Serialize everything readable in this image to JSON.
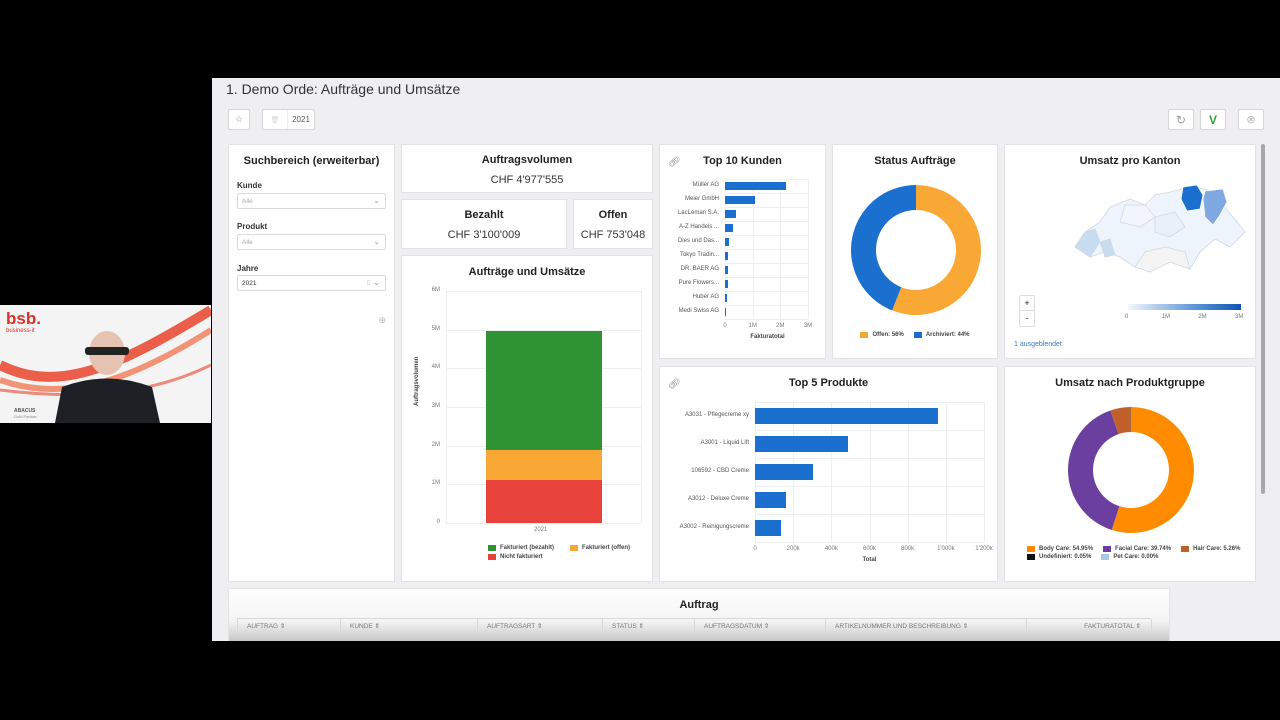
{
  "page": {
    "title": "1. Demo Orde: Aufträge und Umsätze"
  },
  "toolbar": {
    "favorite_icon": "☆",
    "year_chip_icon": "🗑",
    "year_chip_value": "2021",
    "refresh_icon": "↻",
    "apply_icon": "V",
    "close_icon": "⊗",
    "apply_color": "#2e9e3e"
  },
  "filters": {
    "title": "Suchbereich (erweiterbar)",
    "kunde": {
      "label": "Kunde",
      "value": "Alle"
    },
    "produkt": {
      "label": "Produkt",
      "value": "Alle"
    },
    "jahre": {
      "label": "Jahre",
      "value": "2021"
    },
    "add_icon": "⊕"
  },
  "kpis": {
    "auftragsvolumen": {
      "title": "Auftragsvolumen",
      "value": "CHF 4'977'555"
    },
    "bezahlt": {
      "title": "Bezahlt",
      "value": "CHF 3'100'009"
    },
    "offen": {
      "title": "Offen",
      "value": "CHF 753'048"
    }
  },
  "webcam": {
    "brand": "bsb.",
    "brand_sub": "business-it",
    "partner": "ABACUS",
    "partner_sub": "Gold Partner"
  },
  "table": {
    "title": "Auftrag",
    "columns": [
      "AUFTRAG ⇕",
      "KUNDE ⇕",
      "AUFTRAGSART ⇕",
      "STATUS ⇕",
      "AUFTRAGSDATUM ⇕",
      "ARTIKELNUMMER UND BESCHREIBUNG ⇕",
      "FAKTURATOTAL ⇕"
    ]
  },
  "chart_data": [
    {
      "id": "auftraege_umsaetze",
      "type": "bar",
      "stacked": true,
      "title": "Aufträge und Umsätze",
      "xlabel": "",
      "ylabel": "Auftragsvolumen",
      "categories": [
        "2021"
      ],
      "yticks": [
        "0",
        "1M",
        "2M",
        "3M",
        "4M",
        "5M",
        "6M"
      ],
      "ylim": [
        0,
        6000000
      ],
      "series": [
        {
          "name": "Nicht fakturiert",
          "color": "#e8433a",
          "values": [
            1124498
          ]
        },
        {
          "name": "Fakturiert (offen)",
          "color": "#f9a836",
          "values": [
            753048
          ]
        },
        {
          "name": "Fakturiert (bezahlt)",
          "color": "#2f9233",
          "values": [
            3100009
          ]
        }
      ],
      "legend": [
        "Fakturiert (bezahlt)",
        "Fakturiert (offen)",
        "Nicht fakturiert"
      ],
      "legend_position": "bottom"
    },
    {
      "id": "top10_kunden",
      "type": "bar",
      "orientation": "horizontal",
      "title": "Top 10 Kunden",
      "xlabel": "Fakturatotal",
      "categories": [
        "Müller AG",
        "Meier GmbH",
        "LacLeman S.A.",
        "A-Z Handels ...",
        "Dies und Das...",
        "Tokyo Tradin...",
        "DR. BAER AG",
        "Pure Flowers...",
        "Huber AG",
        "Medi Swiss AG"
      ],
      "values": [
        2200000,
        1070000,
        380000,
        280000,
        150000,
        120000,
        100000,
        100000,
        80000,
        30000
      ],
      "xticks": [
        "0",
        "1M",
        "2M",
        "3M"
      ],
      "xlim": [
        0,
        3000000
      ],
      "color": "#1a6fcf"
    },
    {
      "id": "status_auftraege",
      "type": "pie",
      "donut": true,
      "title": "Status Aufträge",
      "slices": [
        {
          "label": "Offen: 56%",
          "value": 56,
          "color": "#f9a836"
        },
        {
          "label": "Archiviert: 44%",
          "value": 44,
          "color": "#1a6fcf"
        }
      ],
      "legend_position": "bottom"
    },
    {
      "id": "umsatz_pro_kanton",
      "type": "heatmap",
      "title": "Umsatz pro Kanton",
      "scale_ticks": [
        "0",
        "1M",
        "2M",
        "3M"
      ],
      "scale_range": [
        0,
        3000000
      ],
      "note": "1 ausgeblendet",
      "zoom_in": "+",
      "zoom_out": "-"
    },
    {
      "id": "top5_produkte",
      "type": "bar",
      "orientation": "horizontal",
      "title": "Top 5 Produkte",
      "xlabel": "Total",
      "categories": [
        "A3031 - Pflegecreme xy",
        "A3001 - Liquid Lift",
        "106592 - CBD Creme",
        "A3012 - Deluxe Creme",
        "A3002 - Reinigungscreme"
      ],
      "values": [
        960000,
        487000,
        304000,
        162000,
        136000
      ],
      "xticks": [
        "0",
        "200k",
        "400k",
        "600k",
        "800k",
        "1'000k",
        "1'200k"
      ],
      "xlim": [
        0,
        1200000
      ],
      "color": "#1a6fcf"
    },
    {
      "id": "umsatz_nach_produktgruppe",
      "type": "pie",
      "donut": true,
      "title": "Umsatz nach Produktgruppe",
      "slices": [
        {
          "label": "Body Care: 54.95%",
          "value": 54.95,
          "color": "#ff8c00"
        },
        {
          "label": "Facial Care: 39.74%",
          "value": 39.74,
          "color": "#6b3fa0"
        },
        {
          "label": "Hair Care: 5.26%",
          "value": 5.26,
          "color": "#c0612b"
        },
        {
          "label": "Undefiniert: 0.05%",
          "value": 0.05,
          "color": "#111111"
        },
        {
          "label": "Pet Care: 0.00%",
          "value": 0.0,
          "color": "#a9cbe8"
        }
      ],
      "legend_position": "bottom"
    }
  ]
}
